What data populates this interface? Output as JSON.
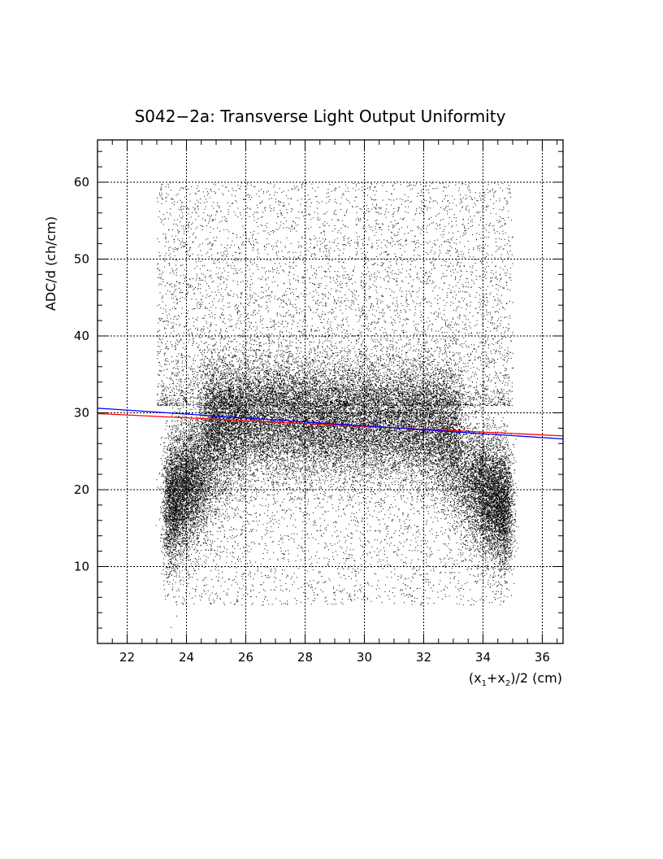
{
  "chart_data": {
    "type": "scatter",
    "title": "S042−2a: Transverse Light Output Uniformity",
    "xlabel": "(x1+x2)/2 (cm)",
    "xlabel_parts": {
      "open": "(x",
      "sub1": "1",
      "plus": "+x",
      "sub2": "2",
      "close": ")/2 (cm)"
    },
    "ylabel": "ADC/d (ch/cm)",
    "xlim": [
      21.0,
      36.7
    ],
    "ylim": [
      0,
      65.5
    ],
    "x_ticks": [
      22,
      24,
      26,
      28,
      30,
      32,
      34,
      36
    ],
    "y_ticks": [
      10,
      20,
      30,
      40,
      50,
      60
    ],
    "grid": true,
    "point_color": "#000000",
    "density_regions": [
      {
        "x": [
          24.5,
          33.2
        ],
        "y": [
          23,
          35
        ],
        "level": "dense core"
      },
      {
        "x": [
          23.0,
          35.0
        ],
        "y": [
          10,
          30
        ],
        "level": "dense edges"
      },
      {
        "x": [
          23.0,
          35.0
        ],
        "y": [
          5,
          60
        ],
        "level": "sparse halo"
      }
    ],
    "fit_lines": [
      {
        "color": "#ff0000",
        "x": [
          21.0,
          36.7
        ],
        "y": [
          29.9,
          27.0
        ]
      },
      {
        "color": "#0000ff",
        "x": [
          21.0,
          36.7
        ],
        "y": [
          30.6,
          26.6
        ]
      }
    ]
  }
}
